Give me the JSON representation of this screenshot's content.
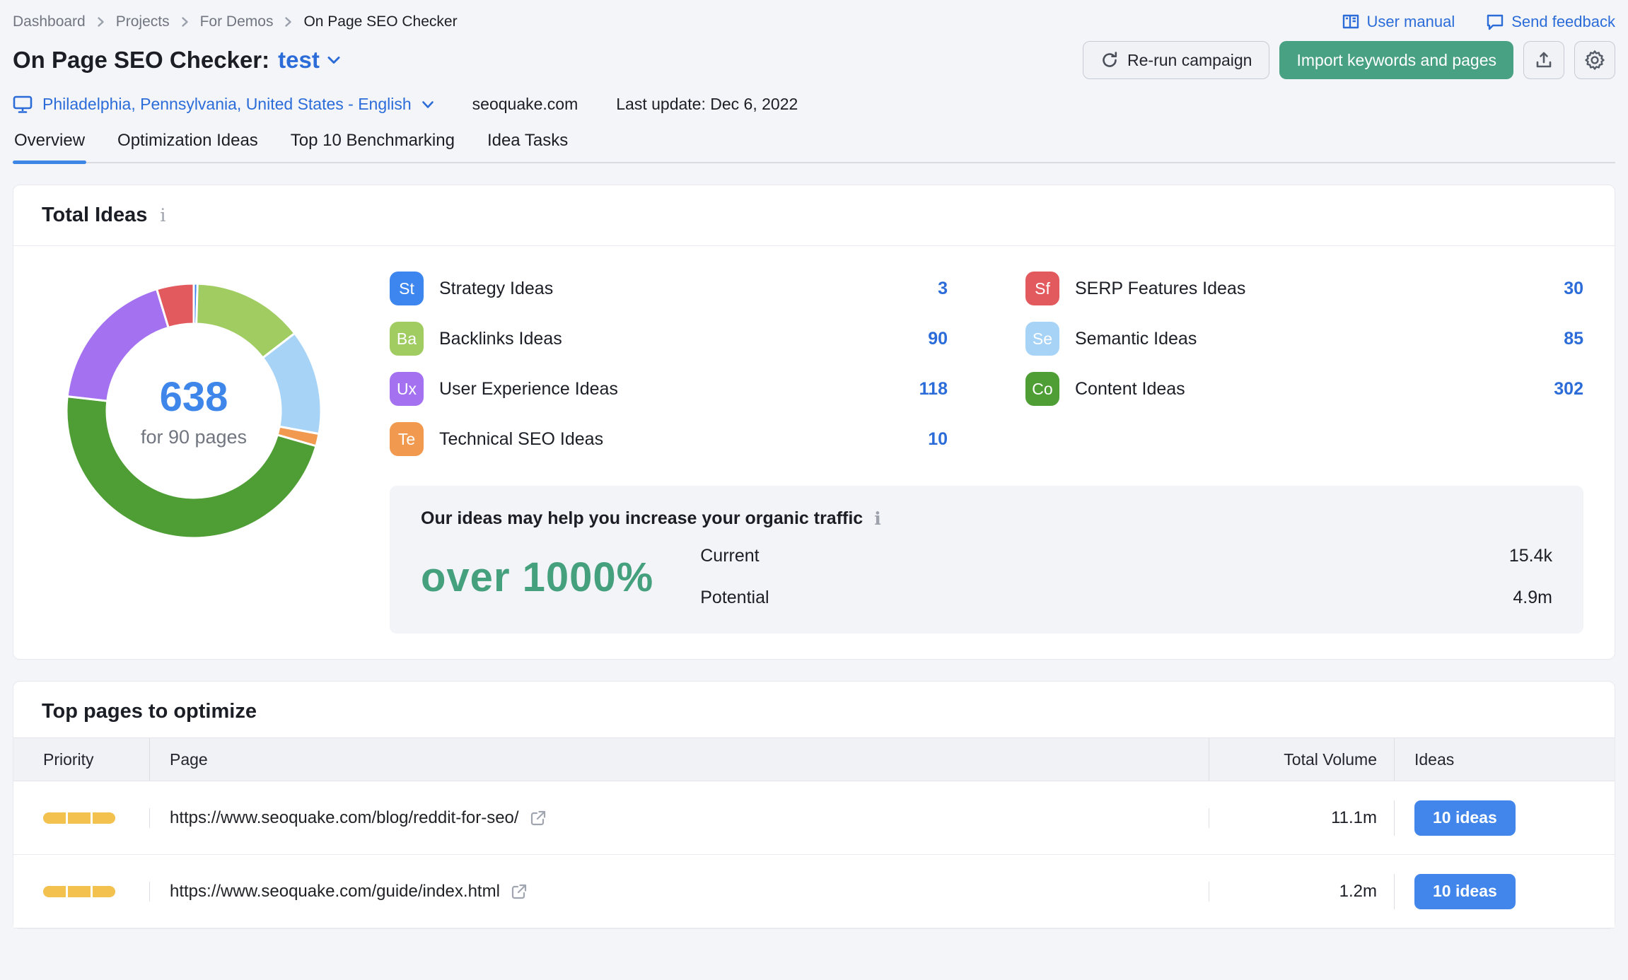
{
  "breadcrumb": {
    "items": [
      "Dashboard",
      "Projects",
      "For Demos",
      "On Page SEO Checker"
    ]
  },
  "top_links": [
    {
      "label": "User manual",
      "icon": "user-manual-book-icon"
    },
    {
      "label": "Send feedback",
      "icon": "feedback-bubble-icon"
    }
  ],
  "header": {
    "title_prefix": "On Page SEO Checker:",
    "project_name": "test",
    "rerun_button": "Re-run campaign",
    "import_button": "Import keywords and pages"
  },
  "meta": {
    "location": "Philadelphia, Pennsylvania, United States - English",
    "domain": "seoquake.com",
    "last_update": "Last update: Dec 6, 2022"
  },
  "tabs": [
    {
      "label": "Overview",
      "active": true
    },
    {
      "label": "Optimization Ideas",
      "active": false
    },
    {
      "label": "Top 10 Benchmarking",
      "active": false
    },
    {
      "label": "Idea Tasks",
      "active": false
    }
  ],
  "total_ideas": {
    "title": "Total Ideas",
    "center_value": "638",
    "center_caption": "for 90 pages",
    "legend_columns": [
      [
        {
          "abbr": "St",
          "label": "Strategy Ideas",
          "count": "3",
          "color": "#3d86f0"
        },
        {
          "abbr": "Ba",
          "label": "Backlinks Ideas",
          "count": "90",
          "color": "#a0cc62"
        },
        {
          "abbr": "Ux",
          "label": "User Experience Ideas",
          "count": "118",
          "color": "#a472f0"
        },
        {
          "abbr": "Te",
          "label": "Technical SEO Ideas",
          "count": "10",
          "color": "#f0994f"
        }
      ],
      [
        {
          "abbr": "Sf",
          "label": "SERP Features Ideas",
          "count": "30",
          "color": "#e25a5e"
        },
        {
          "abbr": "Se",
          "label": "Semantic Ideas",
          "count": "85",
          "color": "#a7d3f7"
        },
        {
          "abbr": "Co",
          "label": "Content Ideas",
          "count": "302",
          "color": "#4f9e35"
        }
      ]
    ]
  },
  "chart_data": {
    "type": "pie",
    "title": "Total Ideas",
    "center_label": "638",
    "center_sublabel": "for 90 pages",
    "total": 638,
    "start_angle_deg": -90,
    "direction": "clockwise",
    "slices": [
      {
        "label": "Strategy Ideas",
        "value": 3,
        "color": "#3d86f0"
      },
      {
        "label": "Backlinks Ideas",
        "value": 90,
        "color": "#a0cc62"
      },
      {
        "label": "Semantic Ideas",
        "value": 85,
        "color": "#a7d3f7"
      },
      {
        "label": "Technical SEO Ideas",
        "value": 10,
        "color": "#f0994f"
      },
      {
        "label": "Content Ideas",
        "value": 302,
        "color": "#4f9e35"
      },
      {
        "label": "User Experience Ideas",
        "value": 118,
        "color": "#a472f0"
      },
      {
        "label": "SERP Features Ideas",
        "value": 30,
        "color": "#e25a5e"
      }
    ]
  },
  "traffic": {
    "title": "Our ideas may help you increase your organic traffic",
    "highlight": "over 1000%",
    "rows": [
      {
        "label": "Current",
        "value": "15.4k",
        "bar_color": "#e2e4e9"
      },
      {
        "label": "Potential",
        "value": "4.9m",
        "bar_color": "#4db5f6"
      }
    ]
  },
  "top_pages": {
    "title": "Top pages to optimize",
    "columns": [
      "Priority",
      "Page",
      "Total Volume",
      "Ideas"
    ],
    "rows": [
      {
        "priority": 3,
        "priority_max": 3,
        "url": "https://www.seoquake.com/blog/reddit-for-seo/",
        "total_volume": "11.1m",
        "ideas": "10 ideas"
      },
      {
        "priority": 3,
        "priority_max": 3,
        "url": "https://www.seoquake.com/guide/index.html",
        "total_volume": "1.2m",
        "ideas": "10 ideas"
      }
    ]
  },
  "colors": {
    "link_blue": "#2b6cd9",
    "tab_underline": "#3e86e6",
    "green_button": "#47a182",
    "highlight_green": "#45a07e",
    "priority_yellow": "#f2c14e",
    "ideas_button": "#4286ec",
    "donut_center": "#3e86ea",
    "potential_bar": "#4db5f6",
    "current_bar": "#e2e4e9"
  }
}
